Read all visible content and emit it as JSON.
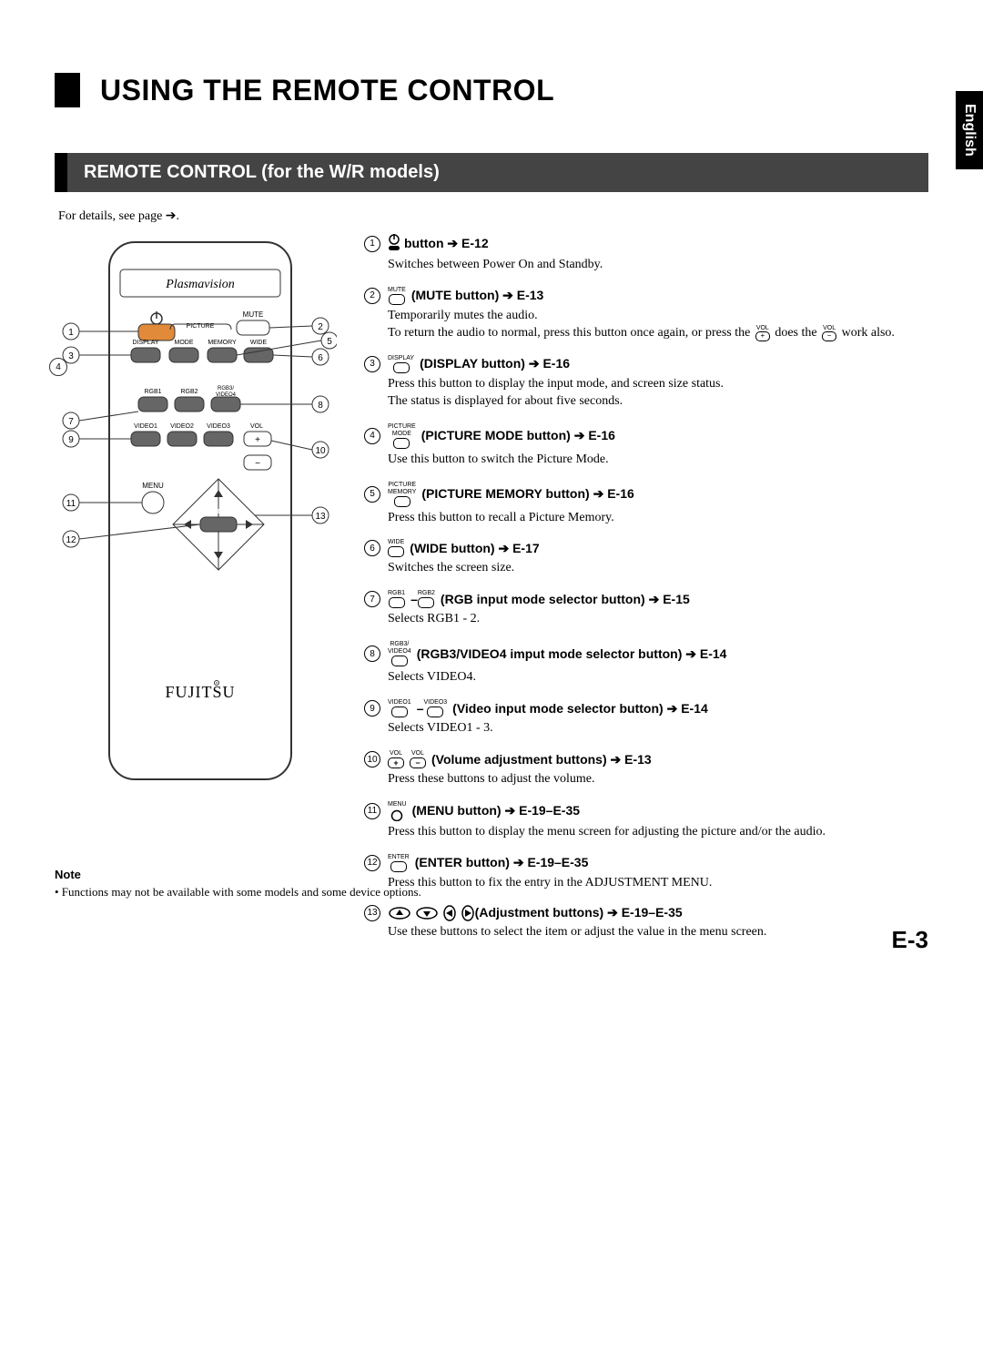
{
  "lang_tab": "English",
  "title": "USING THE REMOTE CONTROL",
  "section_header": "REMOTE CONTROL (for the W/R models)",
  "details_line": "For details, see page ➔.",
  "remote_labels": {
    "brand": "Plasmavision",
    "logo": "FUJITSU",
    "row1": [
      "DISPLAY",
      "MODE",
      "MEMORY",
      "WIDE"
    ],
    "picture_group": "PICTURE",
    "mute": "MUTE",
    "rgb_row": [
      "RGB1",
      "RGB2",
      "RGB3/\nVIDEO4"
    ],
    "video_row": [
      "VIDEO1",
      "VIDEO2",
      "VIDEO3",
      "VOL"
    ],
    "menu": "MENU",
    "enter": "ENTER"
  },
  "items": [
    {
      "num": "1",
      "icon_type": "power",
      "label": " button ➔ E-12",
      "body": "Switches between Power On and Standby."
    },
    {
      "num": "2",
      "icon_label": "MUTE",
      "label": "(MUTE button) ➔ E-13",
      "body": "Temporarily mutes the audio.",
      "body2_pre": "To return the audio to normal, press this button once again, or press the ",
      "body2_mid_icon": "VOL+",
      "body2_mid": " does the ",
      "body2_icon2": "VOL−",
      "body2_post": " work also."
    },
    {
      "num": "3",
      "icon_label": "DISPLAY",
      "label": "(DISPLAY button) ➔ E-16",
      "body": "Press this button to display the input mode, and screen size status.",
      "body2": "The status is displayed for about five seconds."
    },
    {
      "num": "4",
      "icon_label": "PICTURE\nMODE",
      "label": "(PICTURE MODE button) ➔ E-16",
      "body": "Use this button to switch the Picture Mode."
    },
    {
      "num": "5",
      "icon_label": "PICTURE\nMEMORY",
      "label": "(PICTURE MEMORY button) ➔ E-16",
      "body": "Press this button to recall a Picture Memory."
    },
    {
      "num": "6",
      "icon_label": "WIDE",
      "label": "(WIDE button) ➔ E-17",
      "body": "Switches the screen size."
    },
    {
      "num": "7",
      "range": [
        "RGB1",
        "RGB2"
      ],
      "label": "(RGB input mode selector button) ➔ E-15",
      "body": "Selects RGB1 - 2."
    },
    {
      "num": "8",
      "icon_label": "RGB3/\nVIDEO4",
      "label": "(RGB3/VIDEO4 imput mode selector button) ➔ E-14",
      "body": "Selects VIDEO4."
    },
    {
      "num": "9",
      "range": [
        "VIDEO1",
        "VIDEO3"
      ],
      "label": "(Video input mode selector button) ➔ E-14",
      "body": "Selects VIDEO1 - 3."
    },
    {
      "num": "10",
      "vol_pair": [
        "+",
        "−"
      ],
      "icon_label": "VOL",
      "label": "(Volume adjustment buttons) ➔ E-13",
      "body": "Press these buttons to adjust the volume."
    },
    {
      "num": "11",
      "icon_label": "MENU",
      "menu_circle": true,
      "label": "(MENU button) ➔ E-19–E-35",
      "body": "Press this button to display the menu screen for adjusting the picture and/or the audio."
    },
    {
      "num": "12",
      "icon_label": "ENTER",
      "label": "(ENTER button) ➔ E-19–E-35",
      "body": "Press this button to fix the entry in the ADJUSTMENT MENU."
    },
    {
      "num": "13",
      "adjustment": true,
      "label": "(Adjustment buttons) ➔ E-19–E-35",
      "body": "Use these buttons to select the item or adjust the value in the menu screen."
    }
  ],
  "note": {
    "title": "Note",
    "body": "• Functions may not be available with some models and some device options."
  },
  "page_number": "E-3",
  "colors": {
    "black": "#000000",
    "darkgrey": "#444444",
    "remote_btn_orange": "#e08a3a",
    "remote_btn_grey": "#666666",
    "remote_outline": "#333333"
  }
}
